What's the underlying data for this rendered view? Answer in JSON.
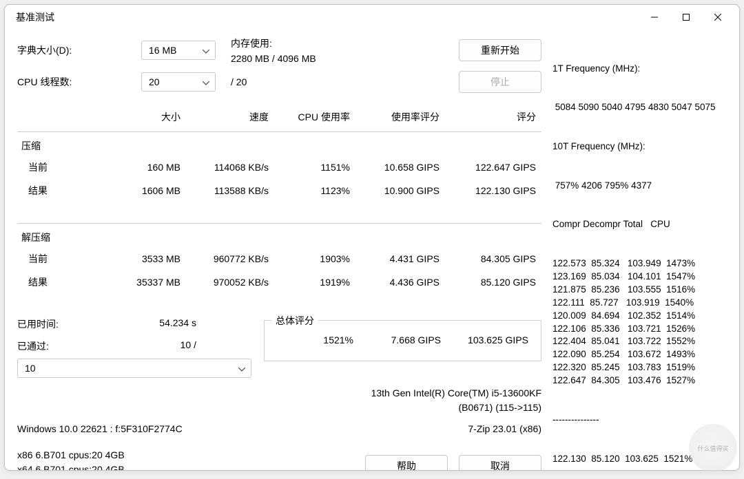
{
  "window": {
    "title": "基准测试"
  },
  "controls": {
    "dict_label": "字典大小(D):",
    "dict_value": "16 MB",
    "threads_label": "CPU 线程数:",
    "threads_value": "20",
    "threads_total": "/ 20",
    "mem_label": "内存使用:",
    "mem_value": "2280 MB / 4096 MB",
    "restart": "重新开始",
    "stop": "停止"
  },
  "table": {
    "headers": {
      "size": "大小",
      "speed": "速度",
      "cpu": "CPU 使用率",
      "rating_usage": "使用率评分",
      "rating": "评分"
    },
    "compress_label": "压缩",
    "decompress_label": "解压缩",
    "current_label": "当前",
    "result_label": "结果",
    "compress_current": {
      "size": "160 MB",
      "speed": "114068 KB/s",
      "cpu": "1151%",
      "ru": "10.658 GIPS",
      "r": "122.647 GIPS"
    },
    "compress_result": {
      "size": "1606 MB",
      "speed": "113588 KB/s",
      "cpu": "1123%",
      "ru": "10.900 GIPS",
      "r": "122.130 GIPS"
    },
    "decompress_current": {
      "size": "3533 MB",
      "speed": "960772 KB/s",
      "cpu": "1903%",
      "ru": "4.431 GIPS",
      "r": "84.305 GIPS"
    },
    "decompress_result": {
      "size": "35337 MB",
      "speed": "970052 KB/s",
      "cpu": "1919%",
      "ru": "4.436 GIPS",
      "r": "85.120 GIPS"
    }
  },
  "summary": {
    "elapsed_label": "已用时间:",
    "elapsed_value": "54.234 s",
    "passes_label": "已通过:",
    "passes_value": "10 /",
    "passes_select": "10",
    "total_label": "总体评分",
    "total_cpu": "1521%",
    "total_ru": "7.668 GIPS",
    "total_r": "103.625 GIPS"
  },
  "sys": {
    "cpu_line1": "13th Gen Intel(R) Core(TM) i5-13600KF",
    "cpu_line2": "(B0671) (115->115)",
    "os_line": "Windows 10.0 22621 :  f:5F310F2774C",
    "app_line": "7-Zip 23.01 (x86)",
    "x86_line": "x86 6.B701 cpus:20 4GB",
    "x64_line": "x64 6.B701 cpus:20 4GB",
    "help_btn": "帮助",
    "cancel_btn": "取消"
  },
  "right_panel": {
    "freq1_label": "1T Frequency (MHz):",
    "freq1_values": " 5084 5090 5040 4795 4830 5047 5075",
    "freq10_label": "10T Frequency (MHz):",
    "freq10_values": " 757% 4206 795% 4377",
    "table_header": "Compr Decompr Total   CPU",
    "rows": [
      "122.573  85.324   103.949  1473%",
      "123.169  85.034   104.101  1547%",
      "121.875  85.236   103.555  1516%",
      "122.111  85.727   103.919  1540%",
      "120.009  84.694   102.352  1514%",
      "122.106  85.336   103.721  1526%",
      "122.404  85.041   103.722  1552%",
      "122.090  85.254   103.672  1493%",
      "122.320  85.245   103.783  1519%",
      "122.647  84.305   103.476  1527%"
    ],
    "sep": "---------------",
    "final": "122.130  85.120  103.625  1521%"
  },
  "watermark": "什么值得买"
}
